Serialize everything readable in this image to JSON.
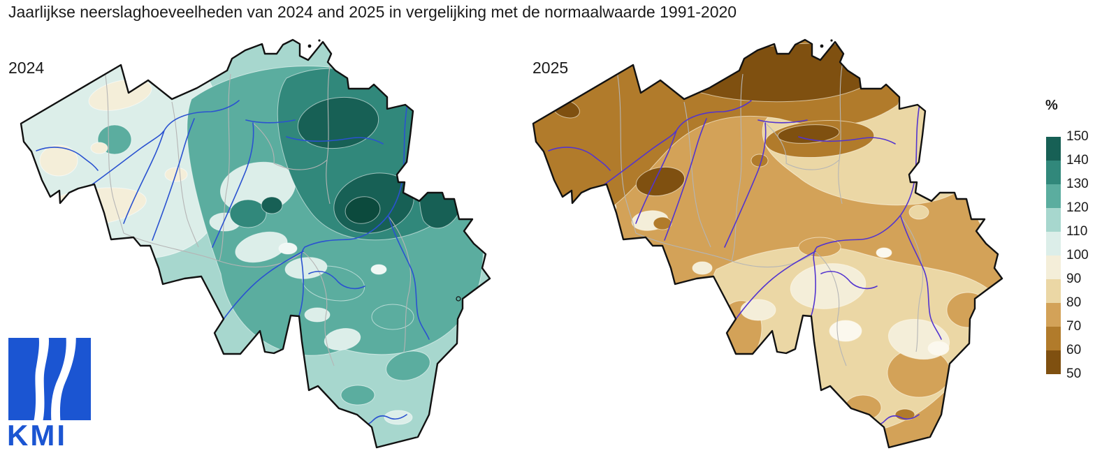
{
  "title": "Jaarlijkse neerslaghoeveelheden van 2024 and 2025 in vergelijking met de normaalwaarde 1991-2020",
  "maps": {
    "left": {
      "year_label": "2024",
      "description": "Annual precipitation 2024 in % of the 1991-2020 normal over Belgium; mostly 100-150% (above normal, teal shades), wettest (>140-150%) in the centre-east, 90-100% pockets near the west coast"
    },
    "right": {
      "year_label": "2025",
      "description": "Annual precipitation 2025 in % of the 1991-2020 normal over Belgium; mostly 50-100% (below normal, brown shades), driest (50-60%) along the north, 90-110% pockets in the south"
    }
  },
  "legend": {
    "title": "%",
    "tick_labels": [
      "150",
      "140",
      "130",
      "120",
      "110",
      "100",
      "90",
      "80",
      "70",
      "60",
      "50"
    ],
    "band_colors": [
      "#176055",
      "#31887b",
      "#5bad9f",
      "#a7d7ce",
      "#dceee9",
      "#f4eed9",
      "#ebd7a5",
      "#d3a258",
      "#b17b2b",
      "#7f5010"
    ]
  },
  "chart_data": {
    "type": "heatmap",
    "title": "Jaarlijkse neerslaghoeveelheden van 2024 and 2025 in vergelijking met de normaalwaarde 1991-2020",
    "unit": "%",
    "legend_values": [
      150,
      140,
      130,
      120,
      110,
      100,
      90,
      80,
      70,
      60,
      50
    ],
    "panels": [
      {
        "label": "2024",
        "value_range_shown": "90 to >150 % of normal"
      },
      {
        "label": "2025",
        "value_range_shown": "50 to ~110 % of normal"
      }
    ]
  },
  "logo": {
    "text": "KMI"
  },
  "colors": {
    "above_scale_teal": "#0c4a3d",
    "pale_teal": "#f0f8f5",
    "pale_cream": "#fbf8ee",
    "country_border": "#111111",
    "province_border": "#b5b5b5",
    "river_2024": "#2a52d0",
    "river_2025": "#5334cf",
    "logo_blue": "#1b55d2",
    "text": "#1a1a1a"
  }
}
